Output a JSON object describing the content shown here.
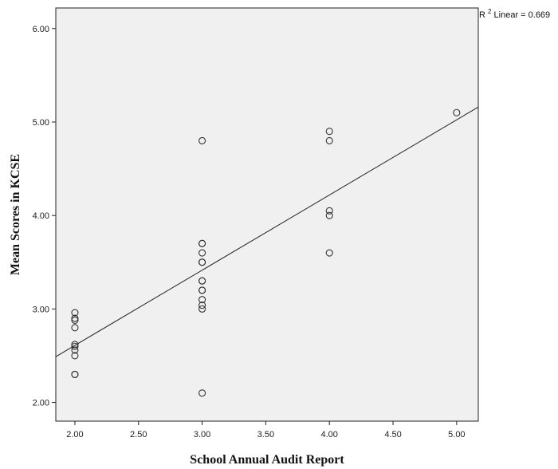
{
  "chart_data": {
    "type": "scatter",
    "xlabel": "School Annual Audit Report",
    "ylabel": "Mean Scores in KCSE",
    "xlim": [
      1.85,
      5.17
    ],
    "ylim": [
      1.8,
      6.22
    ],
    "x_ticks": [
      "2.00",
      "2.50",
      "3.00",
      "3.50",
      "4.00",
      "4.50",
      "5.00"
    ],
    "y_ticks": [
      "2.00",
      "3.00",
      "4.00",
      "5.00",
      "6.00"
    ],
    "background_color": "#f0f0f0",
    "grid": false,
    "points": [
      {
        "x": 2,
        "y": 2.96
      },
      {
        "x": 2,
        "y": 2.9
      },
      {
        "x": 2,
        "y": 2.88
      },
      {
        "x": 2,
        "y": 2.8
      },
      {
        "x": 2,
        "y": 2.62
      },
      {
        "x": 2,
        "y": 2.6
      },
      {
        "x": 2,
        "y": 2.56
      },
      {
        "x": 2,
        "y": 2.5
      },
      {
        "x": 2,
        "y": 2.3
      },
      {
        "x": 2,
        "y": 2.3
      },
      {
        "x": 3,
        "y": 4.8
      },
      {
        "x": 3,
        "y": 3.7
      },
      {
        "x": 3,
        "y": 3.7
      },
      {
        "x": 3,
        "y": 3.6
      },
      {
        "x": 3,
        "y": 3.5
      },
      {
        "x": 3,
        "y": 3.5
      },
      {
        "x": 3,
        "y": 3.3
      },
      {
        "x": 3,
        "y": 3.3
      },
      {
        "x": 3,
        "y": 3.2
      },
      {
        "x": 3,
        "y": 3.2
      },
      {
        "x": 3,
        "y": 3.1
      },
      {
        "x": 3,
        "y": 3.04
      },
      {
        "x": 3,
        "y": 3.0
      },
      {
        "x": 3,
        "y": 2.1
      },
      {
        "x": 4,
        "y": 4.9
      },
      {
        "x": 4,
        "y": 4.8
      },
      {
        "x": 4,
        "y": 4.05
      },
      {
        "x": 4,
        "y": 4.0
      },
      {
        "x": 4,
        "y": 3.6
      },
      {
        "x": 5,
        "y": 5.1
      }
    ],
    "fit_line": {
      "x": [
        1.85,
        5.17
      ],
      "y": [
        2.49,
        5.16
      ]
    },
    "annotation": {
      "base": "R",
      "sup": "2",
      "text": " Linear = 0.669"
    }
  }
}
